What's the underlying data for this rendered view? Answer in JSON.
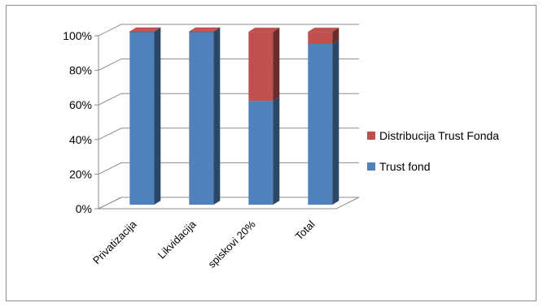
{
  "chart_data": {
    "type": "bar",
    "stacked": "percent",
    "three_d": true,
    "categories": [
      "Privatizacija",
      "Likvidacija",
      "spiskovi 20%",
      "Total"
    ],
    "series": [
      {
        "name": "Trust fond",
        "values": [
          100,
          100,
          60,
          93
        ],
        "color": "#4f81bd"
      },
      {
        "name": "Distribucija Trust Fonda",
        "values": [
          0,
          0,
          40,
          7
        ],
        "color": "#c0504d"
      }
    ],
    "yticks": [
      "0%",
      "20%",
      "40%",
      "60%",
      "80%",
      "100%"
    ],
    "ylim": [
      0,
      100
    ],
    "grid": true,
    "legend": "right"
  }
}
